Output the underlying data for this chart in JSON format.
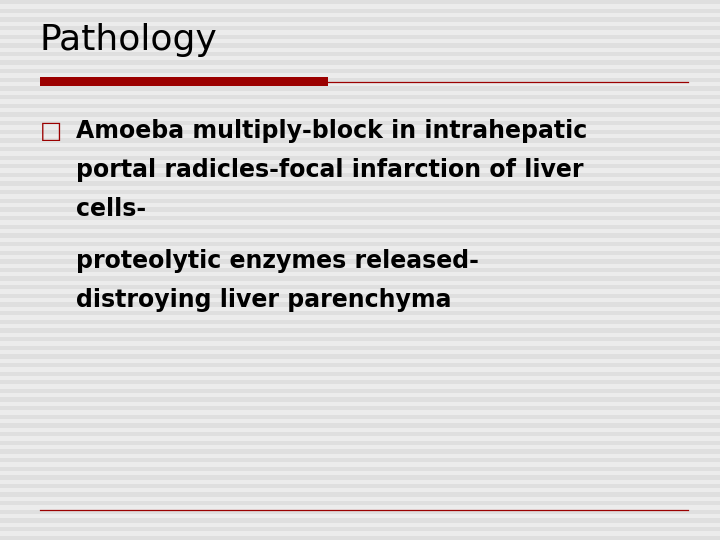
{
  "title": "Pathology",
  "title_fontsize": 26,
  "title_color": "#000000",
  "bg_color": "#ececec",
  "red_bar_color": "#9B0000",
  "thin_line_color": "#9B0000",
  "bullet_char": "□",
  "bullet_color": "#9B0000",
  "bullet_fontsize": 17,
  "body_fontsize": 17,
  "body_color": "#000000",
  "line1": "Amoeba multiply-block in intrahepatic",
  "line2": "portal radicles-focal infarction of liver",
  "line3": "cells-",
  "line4": "proteolytic enzymes released-",
  "line5": "distroying liver parenchyma",
  "bottom_line_color": "#9B0000",
  "stripe_light": "#e0e0e0",
  "stripe_dark": "#f4f4f4"
}
